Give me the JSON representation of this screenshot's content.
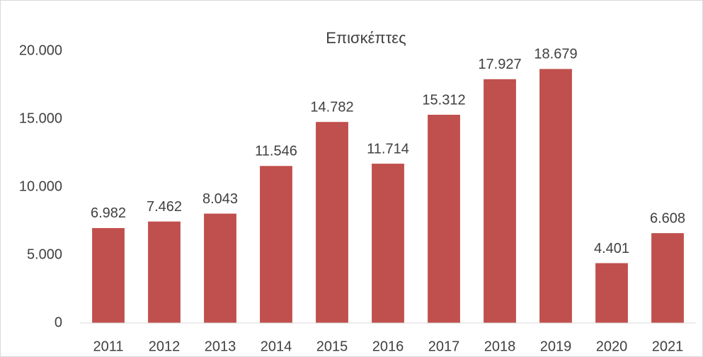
{
  "chart_data": {
    "type": "bar",
    "title": "Επισκέπτες",
    "categories": [
      "2011",
      "2012",
      "2013",
      "2014",
      "2015",
      "2016",
      "2017",
      "2018",
      "2019",
      "2020",
      "2021"
    ],
    "values": [
      6982,
      7462,
      8043,
      11546,
      14782,
      11714,
      15312,
      17927,
      18679,
      4401,
      6608
    ],
    "value_labels": [
      "6.982",
      "7.462",
      "8.043",
      "11.546",
      "14.782",
      "11.714",
      "15.312",
      "17.927",
      "18.679",
      "4.401",
      "6.608"
    ],
    "color": "#c0504d",
    "ylim": [
      0,
      23000
    ],
    "yticks": [
      0,
      {
        "value": 5000,
        "label": "5.000"
      },
      {
        "value": 10000,
        "label": "10.000"
      },
      {
        "value": 15000,
        "label": "15.000"
      },
      {
        "value": 20000,
        "label": "20.000"
      }
    ],
    "grid": false
  }
}
